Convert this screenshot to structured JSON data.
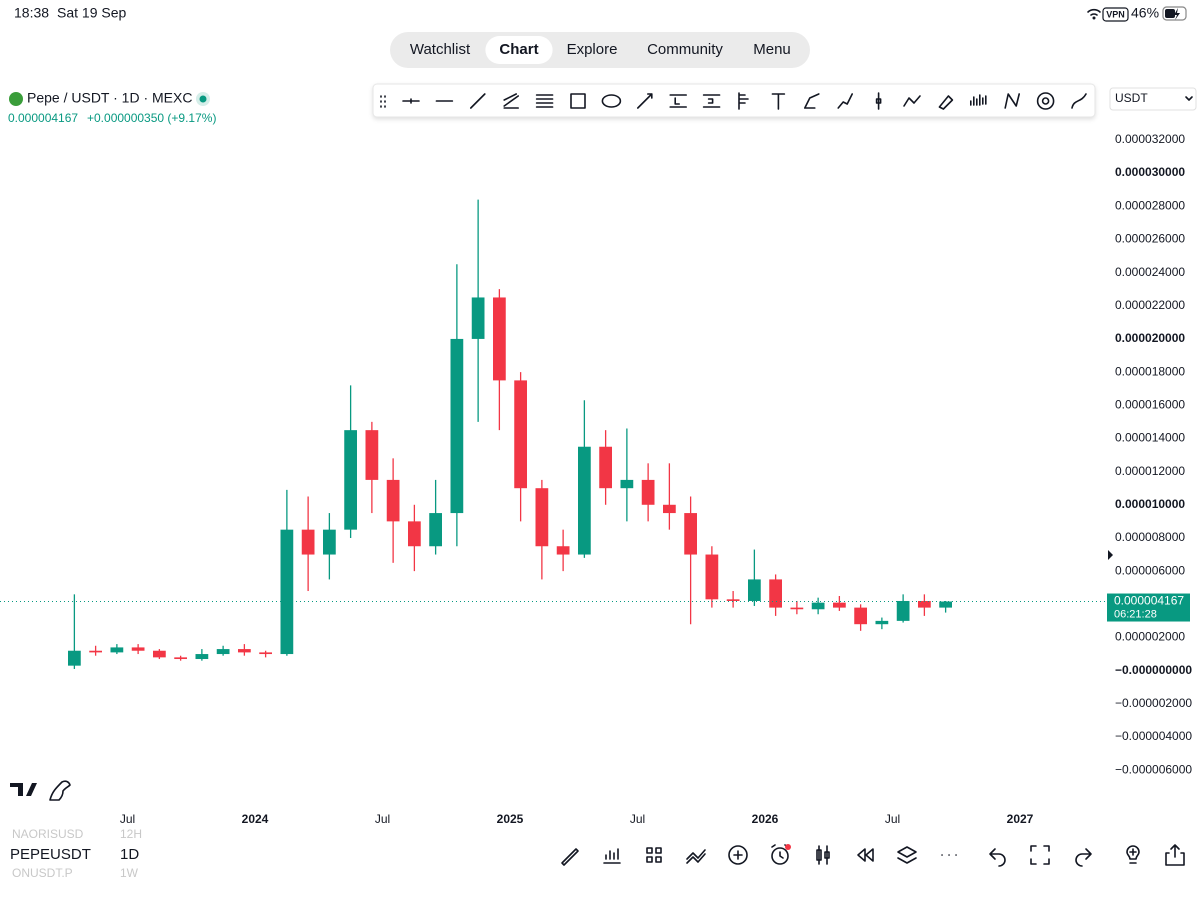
{
  "status_bar": {
    "time": "18:38",
    "date": "Sat 19 Sep",
    "vpn": "VPN",
    "battery": "46%"
  },
  "nav": {
    "tabs": [
      "Watchlist",
      "Chart",
      "Explore",
      "Community",
      "Menu"
    ],
    "active": 1
  },
  "symbol": {
    "name": "Pepe / USDT · 1D · MEXC",
    "price": "0.000004167",
    "change": "+0.000000350 (+9.17%)"
  },
  "currency_select": "USDT",
  "symbol_list": {
    "items": [
      {
        "symbol": "NAORISUSD",
        "interval": "12H"
      },
      {
        "symbol": "PEPEUSDT",
        "interval": "1D"
      },
      {
        "symbol": "ONUSDT.P",
        "interval": "1W"
      }
    ],
    "active": 1
  },
  "chart_data": {
    "type": "candlestick",
    "x": [
      "2023-04",
      "2023-05",
      "2023-06",
      "2023-07",
      "2023-08",
      "2023-09",
      "2023-10",
      "2023-11",
      "2023-12",
      "2024-01",
      "2024-02",
      "2024-03",
      "2024-04",
      "2024-05",
      "2024-06",
      "2024-07",
      "2024-08",
      "2024-09",
      "2024-10",
      "2024-11",
      "2024-12",
      "2025-01",
      "2025-02",
      "2025-03",
      "2025-04",
      "2025-05",
      "2025-06",
      "2025-07",
      "2025-08",
      "2025-09",
      "2025-10",
      "2025-11",
      "2025-12",
      "2026-01",
      "2026-02",
      "2026-03",
      "2026-04",
      "2026-05",
      "2026-06",
      "2026-07",
      "2026-08",
      "2026-09"
    ],
    "open": [
      3e-07,
      1.2e-06,
      1.1e-06,
      1.4e-06,
      1.2e-06,
      8e-07,
      7e-07,
      1e-06,
      1.3e-06,
      1.1e-06,
      1e-06,
      8.5e-06,
      7e-06,
      8.5e-06,
      1.45e-05,
      1.15e-05,
      9e-06,
      7.5e-06,
      9.5e-06,
      2e-05,
      2.25e-05,
      1.75e-05,
      1.1e-05,
      7.5e-06,
      7e-06,
      1.35e-05,
      1.1e-05,
      1.15e-05,
      1e-05,
      9.5e-06,
      7e-06,
      4.3e-06,
      4.2e-06,
      5.5e-06,
      3.8e-06,
      3.7e-06,
      4.1e-06,
      3.8e-06,
      2.8e-06,
      3e-06,
      4.2e-06,
      3.8e-06
    ],
    "high": [
      4.6e-06,
      1.5e-06,
      1.6e-06,
      1.6e-06,
      1.3e-06,
      9e-07,
      1.3e-06,
      1.5e-06,
      1.6e-06,
      1.2e-06,
      1.09e-05,
      1.05e-05,
      9.5e-06,
      1.72e-05,
      1.5e-05,
      1.28e-05,
      1e-05,
      1.15e-05,
      2.45e-05,
      2.84e-05,
      2.3e-05,
      1.8e-05,
      1.15e-05,
      8.5e-06,
      1.63e-05,
      1.45e-05,
      1.46e-05,
      1.25e-05,
      1.25e-05,
      1.05e-05,
      7.5e-06,
      4.8e-06,
      7.3e-06,
      5.8e-06,
      4.2e-06,
      4.4e-06,
      4.5e-06,
      4e-06,
      3.2e-06,
      4.6e-06,
      4.6e-06,
      4.2e-06
    ],
    "low": [
      1e-07,
      9e-07,
      1e-06,
      1e-06,
      7e-07,
      6e-07,
      6e-07,
      9e-07,
      9e-07,
      8e-07,
      9e-07,
      4.8e-06,
      5.5e-06,
      8e-06,
      9.5e-06,
      6.5e-06,
      6e-06,
      7e-06,
      7.5e-06,
      1.5e-05,
      1.45e-05,
      9e-06,
      5.5e-06,
      6e-06,
      6.8e-06,
      1e-05,
      9e-06,
      9e-06,
      8.5e-06,
      2.8e-06,
      3.8e-06,
      3.8e-06,
      3.9e-06,
      3.3e-06,
      3.4e-06,
      3.4e-06,
      3.6e-06,
      2.4e-06,
      2.5e-06,
      2.9e-06,
      3.3e-06,
      3.5e-06
    ],
    "close": [
      1.2e-06,
      1.1e-06,
      1.4e-06,
      1.2e-06,
      8e-07,
      7e-07,
      1e-06,
      1.3e-06,
      1.1e-06,
      1e-06,
      8.5e-06,
      7e-06,
      8.5e-06,
      1.45e-05,
      1.15e-05,
      9e-06,
      7.5e-06,
      9.5e-06,
      2e-05,
      2.25e-05,
      1.75e-05,
      1.1e-05,
      7.5e-06,
      7e-06,
      1.35e-05,
      1.1e-05,
      1.15e-05,
      1e-05,
      9.5e-06,
      7e-06,
      4.3e-06,
      4.2e-06,
      5.5e-06,
      3.8e-06,
      3.7e-06,
      4.1e-06,
      3.8e-06,
      2.8e-06,
      3e-06,
      4.2e-06,
      3.8e-06,
      4.167e-06
    ],
    "up_color": "#089981",
    "down_color": "#f23645",
    "xlim": [
      "2023-01",
      "2027-05"
    ],
    "xticks": [
      {
        "value": "2023-07",
        "label": "Jul"
      },
      {
        "value": "2024-01",
        "label": "2024"
      },
      {
        "value": "2024-07",
        "label": "Jul"
      },
      {
        "value": "2025-01",
        "label": "2025"
      },
      {
        "value": "2025-07",
        "label": "Jul"
      },
      {
        "value": "2026-01",
        "label": "2026"
      },
      {
        "value": "2026-07",
        "label": "Jul"
      },
      {
        "value": "2027-01",
        "label": "2027"
      }
    ],
    "ylim": [
      -7.8e-06,
      3.32e-05
    ],
    "yticks": [
      {
        "value": 3.2e-05,
        "label": "0.000032000"
      },
      {
        "value": 3e-05,
        "label": "0.000030000"
      },
      {
        "value": 2.8e-05,
        "label": "0.000028000"
      },
      {
        "value": 2.6e-05,
        "label": "0.000026000"
      },
      {
        "value": 2.4e-05,
        "label": "0.000024000"
      },
      {
        "value": 2.2e-05,
        "label": "0.000022000"
      },
      {
        "value": 2e-05,
        "label": "0.000020000"
      },
      {
        "value": 1.8e-05,
        "label": "0.000018000"
      },
      {
        "value": 1.6e-05,
        "label": "0.000016000"
      },
      {
        "value": 1.4e-05,
        "label": "0.000014000"
      },
      {
        "value": 1.2e-05,
        "label": "0.000012000"
      },
      {
        "value": 1e-05,
        "label": "0.000010000"
      },
      {
        "value": 8e-06,
        "label": "0.000008000"
      },
      {
        "value": 6e-06,
        "label": "0.000006000"
      },
      {
        "value": 4e-06,
        "label": "0.000004000"
      },
      {
        "value": 2e-06,
        "label": "0.000002000"
      },
      {
        "value": 0,
        "label": "−0.000000000"
      },
      {
        "value": -2e-06,
        "label": "−0.000002000"
      },
      {
        "value": -4e-06,
        "label": "−0.000004000"
      },
      {
        "value": -6e-06,
        "label": "−0.000006000"
      }
    ],
    "last_price": 4.167e-06,
    "countdown": "06:21:28"
  }
}
